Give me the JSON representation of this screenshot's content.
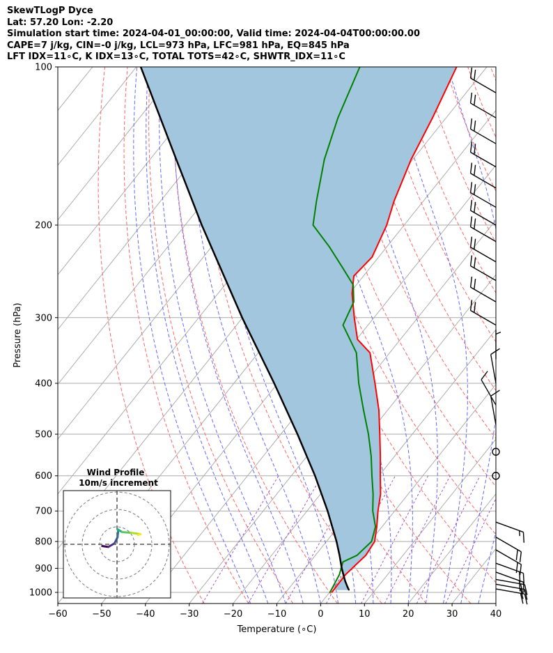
{
  "header": {
    "line1": "SkewTLogP Dyce",
    "line2": "Lat: 57.20   Lon: -2.20",
    "line3": "Simulation start time: 2024-04-01_00:00:00, Valid time: 2024-04-04T00:00:00.00",
    "line4": "CAPE=7 j/kg, CIN=-0 j/kg, LCL=973 hPa, LFC=981 hPa, EQ=845 hPa",
    "line5": "LFT IDX=11∘C, K IDX=13∘C, TOTAL TOTS=42∘C, SHWTR_IDX=11∘C"
  },
  "colors": {
    "temperature": "#ff0000",
    "dewpoint": "#008000",
    "parcel": "#000000",
    "cape_fill": "#a3c6df",
    "dry_adiabat": "#ff6666",
    "moist_adiabat": "#6666ff",
    "mixing_ratio": "#a050c8",
    "isotherm": "#aaaaaa"
  },
  "chart_data": {
    "type": "skewt",
    "xlabel": "Temperature (∘C)",
    "ylabel": "Pressure (hPa)",
    "xlim": [
      -60,
      40
    ],
    "ylim": [
      1050,
      100
    ],
    "xticks": [
      -60,
      -50,
      -40,
      -30,
      -20,
      -10,
      0,
      10,
      20,
      30,
      40
    ],
    "yticks": [
      1000,
      900,
      800,
      700,
      600,
      500,
      400,
      300,
      200,
      100
    ],
    "temperature": [
      {
        "p": 1000,
        "t": 0.5
      },
      {
        "p": 925,
        "t": 0.4
      },
      {
        "p": 850,
        "t": 1.5
      },
      {
        "p": 800,
        "t": 1.0
      },
      {
        "p": 750,
        "t": -1.2
      },
      {
        "p": 700,
        "t": -3.8
      },
      {
        "p": 650,
        "t": -6.3
      },
      {
        "p": 600,
        "t": -9.7
      },
      {
        "p": 550,
        "t": -13.3
      },
      {
        "p": 500,
        "t": -17.4
      },
      {
        "p": 450,
        "t": -22.0
      },
      {
        "p": 400,
        "t": -27.8
      },
      {
        "p": 350,
        "t": -34.5
      },
      {
        "p": 330,
        "t": -39.8
      },
      {
        "p": 300,
        "t": -44.5
      },
      {
        "p": 270,
        "t": -49.4
      },
      {
        "p": 250,
        "t": -52.2
      },
      {
        "p": 230,
        "t": -51.5
      },
      {
        "p": 200,
        "t": -54.0
      },
      {
        "p": 180,
        "t": -56.7
      },
      {
        "p": 150,
        "t": -60.4
      },
      {
        "p": 125,
        "t": -63.1
      },
      {
        "p": 100,
        "t": -66.9
      }
    ],
    "dewpoint": [
      {
        "p": 1000,
        "t": 0.1
      },
      {
        "p": 925,
        "t": -1.0
      },
      {
        "p": 875,
        "t": -2.5
      },
      {
        "p": 850,
        "t": -0.5
      },
      {
        "p": 800,
        "t": 0.3
      },
      {
        "p": 750,
        "t": -1.5
      },
      {
        "p": 700,
        "t": -5.0
      },
      {
        "p": 650,
        "t": -8.0
      },
      {
        "p": 600,
        "t": -11.6
      },
      {
        "p": 550,
        "t": -15.4
      },
      {
        "p": 500,
        "t": -20.0
      },
      {
        "p": 450,
        "t": -25.5
      },
      {
        "p": 400,
        "t": -31.5
      },
      {
        "p": 350,
        "t": -37.6
      },
      {
        "p": 310,
        "t": -45.7
      },
      {
        "p": 280,
        "t": -47.5
      },
      {
        "p": 260,
        "t": -50.7
      },
      {
        "p": 240,
        "t": -56.6
      },
      {
        "p": 220,
        "t": -63.1
      },
      {
        "p": 200,
        "t": -70.8
      },
      {
        "p": 180,
        "t": -74.4
      },
      {
        "p": 150,
        "t": -80.2
      },
      {
        "p": 125,
        "t": -84.7
      },
      {
        "p": 100,
        "t": -89.0
      }
    ],
    "parcel": [
      {
        "p": 990,
        "t": 4.0
      },
      {
        "p": 975,
        "t": 3.0
      },
      {
        "p": 950,
        "t": 1.4
      },
      {
        "p": 900,
        "t": -1.6
      },
      {
        "p": 850,
        "t": -4.5
      },
      {
        "p": 800,
        "t": -7.7
      },
      {
        "p": 700,
        "t": -15.3
      },
      {
        "p": 600,
        "t": -24.6
      },
      {
        "p": 500,
        "t": -36.2
      },
      {
        "p": 400,
        "t": -50.8
      },
      {
        "p": 300,
        "t": -70.1
      },
      {
        "p": 200,
        "t": -96.2
      },
      {
        "p": 150,
        "t": -114.0
      },
      {
        "p": 100,
        "t": -139.0
      }
    ],
    "wind_barbs": [
      {
        "p": 985,
        "spd_kt": 20,
        "dir_deg": 100
      },
      {
        "p": 965,
        "spd_kt": 20,
        "dir_deg": 100
      },
      {
        "p": 945,
        "spd_kt": 20,
        "dir_deg": 100
      },
      {
        "p": 915,
        "spd_kt": 20,
        "dir_deg": 110
      },
      {
        "p": 880,
        "spd_kt": 20,
        "dir_deg": 110
      },
      {
        "p": 830,
        "spd_kt": 20,
        "dir_deg": 120
      },
      {
        "p": 785,
        "spd_kt": 20,
        "dir_deg": 120
      },
      {
        "p": 735,
        "spd_kt": 15,
        "dir_deg": 110
      },
      {
        "p": 600,
        "spd_kt": 0,
        "dir_deg": 0
      },
      {
        "p": 540,
        "spd_kt": 0,
        "dir_deg": 0
      },
      {
        "p": 480,
        "spd_kt": 10,
        "dir_deg": 350
      },
      {
        "p": 440,
        "spd_kt": 10,
        "dir_deg": 330
      },
      {
        "p": 400,
        "spd_kt": 10,
        "dir_deg": 350
      },
      {
        "p": 360,
        "spd_kt": 5,
        "dir_deg": 360
      },
      {
        "p": 310,
        "spd_kt": 20,
        "dir_deg": 300
      },
      {
        "p": 280,
        "spd_kt": 20,
        "dir_deg": 300
      },
      {
        "p": 255,
        "spd_kt": 20,
        "dir_deg": 300
      },
      {
        "p": 235,
        "spd_kt": 20,
        "dir_deg": 300
      },
      {
        "p": 215,
        "spd_kt": 20,
        "dir_deg": 300
      },
      {
        "p": 200,
        "spd_kt": 20,
        "dir_deg": 300
      },
      {
        "p": 185,
        "spd_kt": 20,
        "dir_deg": 300
      },
      {
        "p": 170,
        "spd_kt": 20,
        "dir_deg": 300
      },
      {
        "p": 155,
        "spd_kt": 20,
        "dir_deg": 300
      },
      {
        "p": 140,
        "spd_kt": 20,
        "dir_deg": 300
      },
      {
        "p": 125,
        "spd_kt": 20,
        "dir_deg": 300
      },
      {
        "p": 112,
        "spd_kt": 20,
        "dir_deg": 300
      }
    ],
    "hodograph": {
      "title": "Wind Profile",
      "subtitle": "10m/s increment",
      "rings_ms": [
        10,
        20,
        30
      ],
      "path": [
        {
          "u": -8.5,
          "v": -1.0
        },
        {
          "u": -5.0,
          "v": -1.5
        },
        {
          "u": -1.5,
          "v": 0.5
        },
        {
          "u": 0.3,
          "v": 4.0
        },
        {
          "u": 0.7,
          "v": 7.8
        },
        {
          "u": 0.3,
          "v": 8.6
        },
        {
          "u": 3.0,
          "v": 7.0
        },
        {
          "u": 8.0,
          "v": 6.6
        },
        {
          "u": 13.5,
          "v": 5.8
        },
        {
          "u": 12.0,
          "v": 5.3
        }
      ]
    }
  }
}
